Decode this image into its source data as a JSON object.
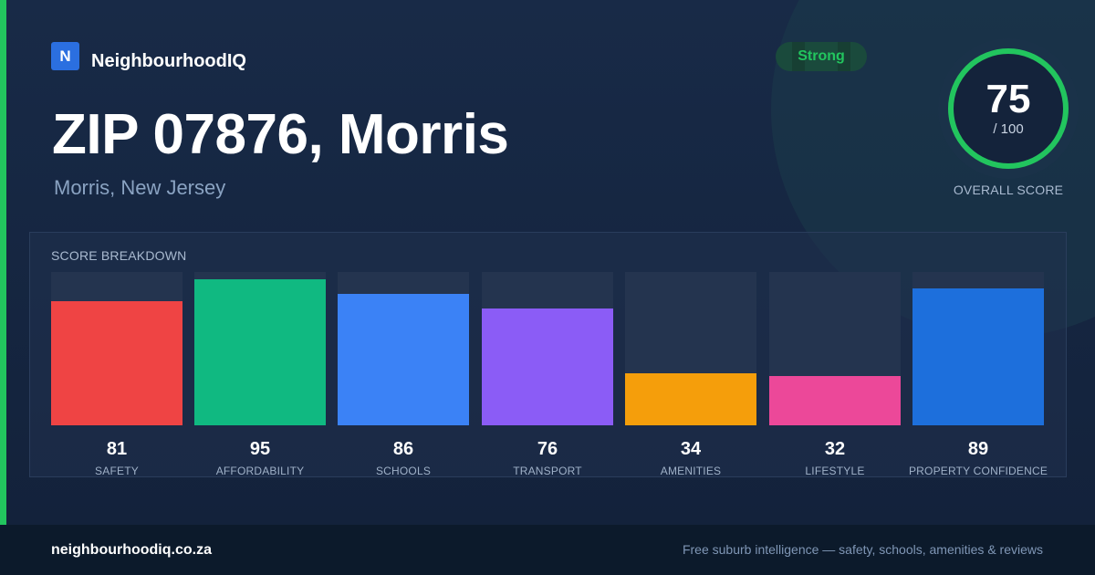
{
  "brand": {
    "logo_letter": "N",
    "name": "NeighbourhoodIQ"
  },
  "badge": {
    "label": "Strong",
    "color": "#22c55e"
  },
  "header": {
    "title": "ZIP 07876, Morris",
    "subtitle": "Morris, New Jersey"
  },
  "overall": {
    "score": "75",
    "max": "/ 100",
    "label": "OVERALL SCORE",
    "fraction": 0.75,
    "ring_color": "#22c55e"
  },
  "breakdown": {
    "title": "SCORE BREAKDOWN",
    "items": [
      {
        "label": "SAFETY",
        "value": "81",
        "color": "#ef4444"
      },
      {
        "label": "AFFORDABILITY",
        "value": "95",
        "color": "#10b981"
      },
      {
        "label": "SCHOOLS",
        "value": "86",
        "color": "#3b82f6"
      },
      {
        "label": "TRANSPORT",
        "value": "76",
        "color": "#8b5cf6"
      },
      {
        "label": "AMENITIES",
        "value": "34",
        "color": "#f59e0b"
      },
      {
        "label": "LIFESTYLE",
        "value": "32",
        "color": "#ec4899"
      },
      {
        "label": "PROPERTY CONFIDENCE",
        "value": "89",
        "color": "#1d6fdc"
      }
    ]
  },
  "footer": {
    "url": "neighbourhoodiq.co.za",
    "tagline": "Free suburb intelligence — safety, schools, amenities & reviews"
  }
}
